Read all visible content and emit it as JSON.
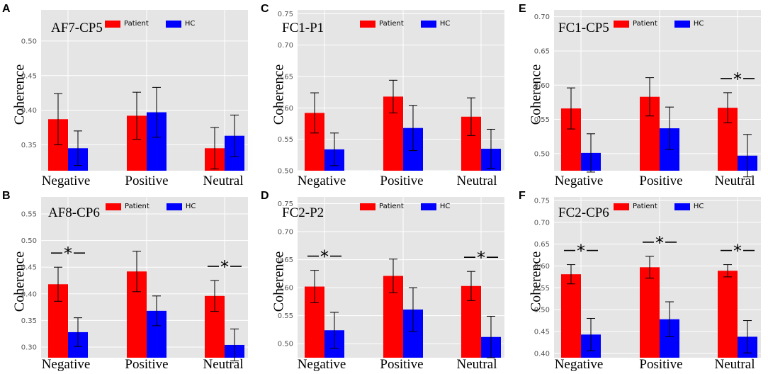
{
  "chart_data": [
    {
      "id": "A",
      "type": "bar",
      "title": "AF7-CP5",
      "ylabel": "Coherence",
      "categories": [
        "Negative",
        "Positive",
        "Neutral"
      ],
      "series": [
        {
          "name": "Patient",
          "color": "#ff0000",
          "values": [
            0.387,
            0.392,
            0.345
          ],
          "errors": [
            0.037,
            0.034,
            0.03
          ]
        },
        {
          "name": "HC",
          "color": "#0000ff",
          "values": [
            0.345,
            0.397,
            0.363
          ],
          "errors": [
            0.025,
            0.036,
            0.03
          ]
        }
      ],
      "ylim": [
        0.3125,
        0.545
      ],
      "yticks": [
        "0.35",
        "0.40",
        "0.45",
        "0.50"
      ],
      "ytick_values": [
        0.35,
        0.4,
        0.45,
        0.5
      ],
      "significant": [
        false,
        false,
        false
      ],
      "sig_label": "*"
    },
    {
      "id": "C",
      "type": "bar",
      "title": "FC1-P1",
      "ylabel": "Coherence",
      "categories": [
        "Negative",
        "Positive",
        "Neutral"
      ],
      "series": [
        {
          "name": "Patient",
          "color": "#ff0000",
          "values": [
            0.592,
            0.618,
            0.586
          ],
          "errors": [
            0.032,
            0.026,
            0.03
          ]
        },
        {
          "name": "HC",
          "color": "#0000ff",
          "values": [
            0.534,
            0.568,
            0.535
          ],
          "errors": [
            0.026,
            0.036,
            0.031
          ]
        }
      ],
      "ylim": [
        0.5,
        0.756
      ],
      "yticks": [
        "0.50",
        "0.55",
        "0.60",
        "0.65",
        "0.70",
        "0.75"
      ],
      "ytick_values": [
        0.5,
        0.55,
        0.6,
        0.65,
        0.7,
        0.75
      ],
      "significant": [
        false,
        false,
        false
      ],
      "sig_label": "*"
    },
    {
      "id": "E",
      "type": "bar",
      "title": "FC1-CP5",
      "ylabel": "Coherence",
      "categories": [
        "Negative",
        "Positive",
        "Neutral"
      ],
      "series": [
        {
          "name": "Patient",
          "color": "#ff0000",
          "values": [
            0.566,
            0.583,
            0.567
          ],
          "errors": [
            0.03,
            0.028,
            0.022
          ]
        },
        {
          "name": "HC",
          "color": "#0000ff",
          "values": [
            0.501,
            0.537,
            0.497
          ],
          "errors": [
            0.028,
            0.031,
            0.031
          ]
        }
      ],
      "ylim": [
        0.475,
        0.71
      ],
      "yticks": [
        "0.50",
        "0.55",
        "0.60",
        "0.65",
        "0.70"
      ],
      "ytick_values": [
        0.5,
        0.55,
        0.6,
        0.65,
        0.7
      ],
      "significant": [
        false,
        false,
        true
      ],
      "sig_label": "*"
    },
    {
      "id": "B",
      "type": "bar",
      "title": "AF8-CP6",
      "ylabel": "Coherence",
      "categories": [
        "Negative",
        "Positive",
        "Neutral"
      ],
      "series": [
        {
          "name": "Patient",
          "color": "#ff0000",
          "values": [
            0.418,
            0.442,
            0.396
          ],
          "errors": [
            0.032,
            0.038,
            0.029
          ]
        },
        {
          "name": "HC",
          "color": "#0000ff",
          "values": [
            0.328,
            0.368,
            0.304
          ],
          "errors": [
            0.027,
            0.028,
            0.03
          ]
        }
      ],
      "ylim": [
        0.28,
        0.582
      ],
      "yticks": [
        "0.30",
        "0.35",
        "0.40",
        "0.45",
        "0.50",
        "0.55"
      ],
      "ytick_values": [
        0.3,
        0.35,
        0.4,
        0.45,
        0.5,
        0.55
      ],
      "significant": [
        true,
        false,
        true
      ],
      "sig_label": "*"
    },
    {
      "id": "D",
      "type": "bar",
      "title": "FC2-P2",
      "ylabel": "Coherence",
      "categories": [
        "Negative",
        "Positive",
        "Neutral"
      ],
      "series": [
        {
          "name": "Patient",
          "color": "#ff0000",
          "values": [
            0.602,
            0.621,
            0.603
          ],
          "errors": [
            0.029,
            0.03,
            0.026
          ]
        },
        {
          "name": "HC",
          "color": "#0000ff",
          "values": [
            0.524,
            0.561,
            0.512
          ],
          "errors": [
            0.032,
            0.039,
            0.037
          ]
        }
      ],
      "ylim": [
        0.475,
        0.762
      ],
      "yticks": [
        "0.50",
        "0.55",
        "0.60",
        "0.65",
        "0.70",
        "0.75"
      ],
      "ytick_values": [
        0.5,
        0.55,
        0.6,
        0.65,
        0.7,
        0.75
      ],
      "significant": [
        true,
        false,
        true
      ],
      "sig_label": "*"
    },
    {
      "id": "F",
      "type": "bar",
      "title": "FC2-CP6",
      "ylabel": "Coherence",
      "categories": [
        "Negative",
        "Positive",
        "Neutral"
      ],
      "series": [
        {
          "name": "Patient",
          "color": "#ff0000",
          "values": [
            0.581,
            0.597,
            0.589
          ],
          "errors": [
            0.022,
            0.025,
            0.014
          ]
        },
        {
          "name": "HC",
          "color": "#0000ff",
          "values": [
            0.443,
            0.478,
            0.438
          ],
          "errors": [
            0.037,
            0.04,
            0.037
          ]
        }
      ],
      "ylim": [
        0.39,
        0.758
      ],
      "yticks": [
        "0.40",
        "0.45",
        "0.50",
        "0.55",
        "0.60",
        "0.65",
        "0.70",
        "0.75"
      ],
      "ytick_values": [
        0.4,
        0.45,
        0.5,
        0.55,
        0.6,
        0.65,
        0.7,
        0.75
      ],
      "significant": [
        true,
        true,
        true
      ],
      "sig_label": "*"
    }
  ]
}
